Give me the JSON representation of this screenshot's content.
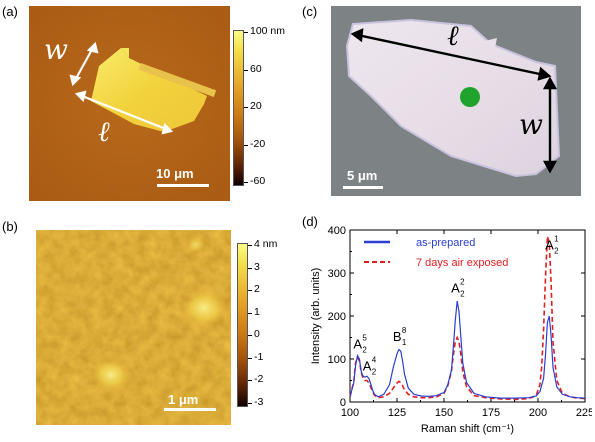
{
  "panels": {
    "a": {
      "label": "(a)",
      "colorbar_ticks": [
        "100 nm",
        "60",
        "20",
        "-20",
        "-60"
      ],
      "scale_bar": "10 μm",
      "dim_w": "w",
      "dim_l": "ℓ"
    },
    "b": {
      "label": "(b)",
      "colorbar_ticks": [
        "4 nm",
        "3",
        "2",
        "1",
        "0",
        "-1",
        "-2",
        "-3"
      ],
      "scale_bar": "1 μm"
    },
    "c": {
      "label": "(c)",
      "scale_bar": "5 μm",
      "dim_w": "w",
      "dim_l": "ℓ",
      "spot_color": "#1fa32c"
    },
    "d": {
      "label": "(d)"
    }
  },
  "chart_data": {
    "type": "line",
    "xlabel": "Raman shift (cm⁻¹)",
    "ylabel": "Intensity (arb. units)",
    "xlim": [
      100,
      225
    ],
    "ylim": [
      0,
      400
    ],
    "xticks": [
      100,
      125,
      150,
      175,
      200,
      225
    ],
    "yticks": [
      0,
      100,
      200,
      300,
      400
    ],
    "series": [
      {
        "name": "as-prepared",
        "color": "#2b3fd0",
        "style": "solid",
        "x": [
          100,
          102,
          103,
          104,
          105,
          106,
          107,
          108,
          109,
          110,
          111,
          112,
          113,
          115,
          118,
          121,
          123,
          125,
          126,
          127,
          128,
          129,
          131,
          134,
          138,
          142,
          146,
          150,
          152,
          154,
          155,
          156,
          157,
          158,
          159,
          160,
          162,
          166,
          172,
          180,
          188,
          195,
          199,
          201,
          203,
          204,
          205,
          206,
          207,
          208,
          210,
          213,
          217,
          221,
          225
        ],
        "y": [
          12,
          45,
          85,
          108,
          100,
          70,
          60,
          58,
          60,
          55,
          42,
          28,
          18,
          12,
          18,
          40,
          80,
          112,
          122,
          118,
          95,
          65,
          32,
          18,
          14,
          13,
          15,
          22,
          40,
          75,
          130,
          190,
          235,
          210,
          150,
          90,
          45,
          20,
          12,
          9,
          9,
          10,
          14,
          24,
          55,
          110,
          185,
          200,
          150,
          80,
          35,
          18,
          12,
          10,
          9
        ]
      },
      {
        "name": "7 days air exposed",
        "color": "#e02020",
        "style": "dashed",
        "x": [
          100,
          102,
          103,
          104,
          105,
          106,
          107,
          108,
          109,
          110,
          111,
          112,
          113,
          115,
          118,
          121,
          123,
          125,
          126,
          127,
          128,
          129,
          131,
          134,
          138,
          142,
          146,
          150,
          152,
          154,
          155,
          156,
          157,
          158,
          159,
          160,
          162,
          166,
          172,
          180,
          188,
          195,
          199,
          201,
          202,
          203,
          204,
          205,
          206,
          207,
          208,
          210,
          213,
          217,
          221,
          225
        ],
        "y": [
          12,
          48,
          92,
          103,
          96,
          68,
          55,
          50,
          50,
          45,
          35,
          24,
          16,
          10,
          12,
          20,
          32,
          44,
          48,
          45,
          38,
          28,
          18,
          12,
          10,
          10,
          12,
          20,
          38,
          72,
          110,
          140,
          150,
          140,
          110,
          70,
          35,
          15,
          10,
          7,
          6,
          8,
          15,
          40,
          85,
          170,
          290,
          385,
          370,
          270,
          140,
          50,
          20,
          12,
          9,
          8
        ]
      }
    ],
    "annotations": [
      {
        "base": "A",
        "sub": "2",
        "sup": "5",
        "x": 105,
        "y": 125
      },
      {
        "base": "A",
        "sub": "2",
        "sup": "4",
        "x": 110,
        "y": 73
      },
      {
        "base": "B",
        "sub": "1",
        "sup": "8",
        "x": 126,
        "y": 142
      },
      {
        "base": "A",
        "sub": "2",
        "sup": "2",
        "x": 157,
        "y": 255
      },
      {
        "base": "A",
        "sub": "2",
        "sup": "1",
        "x": 207,
        "y": 355
      }
    ],
    "legend_position": "top-left"
  }
}
